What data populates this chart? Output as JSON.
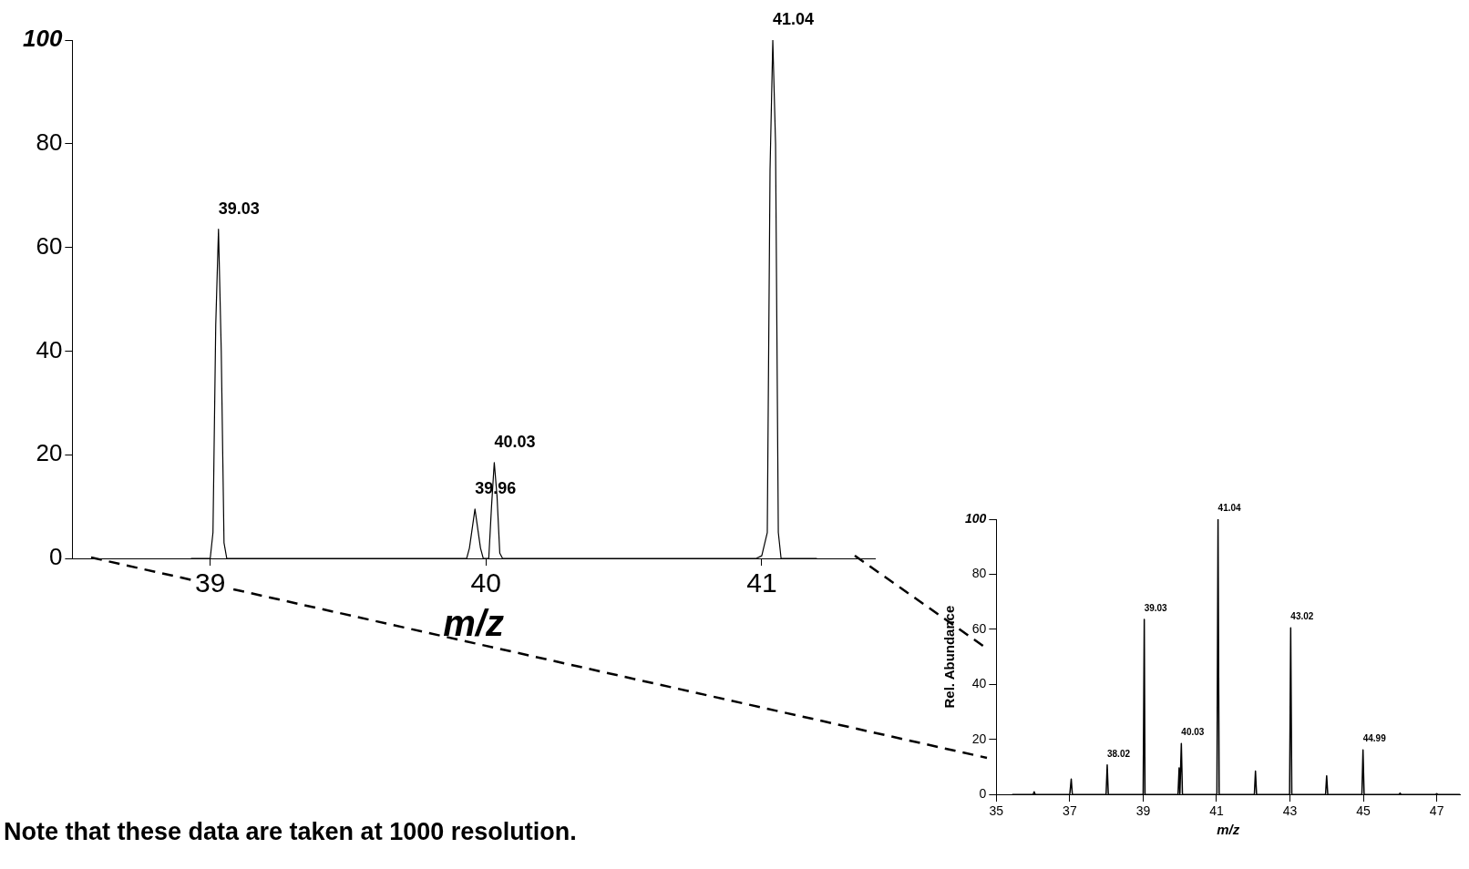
{
  "chart_data": [
    {
      "type": "line",
      "xlabel": "m/z",
      "xlim": [
        38.5,
        41.41
      ],
      "xticks": [
        39,
        40,
        41
      ],
      "ylim": [
        0,
        100
      ],
      "yticks": [
        0,
        20,
        40,
        60,
        80,
        100
      ],
      "grid": false,
      "marker": "none",
      "series": [
        {
          "color": "#000000",
          "x": [
            38.93,
            39.0,
            39.01,
            39.02,
            39.03,
            39.04,
            39.05,
            39.06,
            39.93,
            39.94,
            39.96,
            39.98,
            39.99,
            40.01,
            40.02,
            40.03,
            40.04,
            40.05,
            40.06,
            40.98,
            41.0,
            41.02,
            41.03,
            41.04,
            41.05,
            41.06,
            41.07,
            41.2
          ],
          "values": [
            0,
            0,
            5,
            45,
            63.5,
            40,
            3,
            0,
            0,
            2,
            9.5,
            2,
            0,
            0,
            10,
            18.5,
            12,
            1,
            0,
            0,
            0.5,
            5,
            75,
            100,
            80,
            5,
            0,
            0
          ]
        }
      ],
      "annotations": [
        {
          "text": "39.03",
          "x": 39.03,
          "y": 63.5
        },
        {
          "text": "39.96",
          "x": 39.96,
          "y": 9.5
        },
        {
          "text": "40.03",
          "x": 40.03,
          "y": 18.5
        },
        {
          "text": "41.04",
          "x": 41.04,
          "y": 100
        },
        "Note that these data are taken at 1000 resolution."
      ]
    },
    {
      "type": "line",
      "xlabel": "m/z",
      "ylabel": "Rel. Abundance",
      "xlim": [
        35,
        47.63
      ],
      "xticks": [
        35,
        37,
        39,
        41,
        43,
        45,
        47
      ],
      "ylim": [
        0,
        100
      ],
      "yticks": [
        0,
        20,
        40,
        60,
        80,
        100
      ],
      "grid": false,
      "marker": "none",
      "series": [
        {
          "color": "#000000",
          "x": [
            35.43,
            36.0,
            36.03,
            36.06,
            37.0,
            37.04,
            37.07,
            37.99,
            38.02,
            38.05,
            39.0,
            39.03,
            39.05,
            39.95,
            39.98,
            40.0,
            40.04,
            40.07,
            41.01,
            41.04,
            41.07,
            42.03,
            42.06,
            42.09,
            42.99,
            43.02,
            43.05,
            43.97,
            44.0,
            44.03,
            44.96,
            44.99,
            45.02,
            45.97,
            46.0,
            46.03,
            46.97,
            47.0,
            47.03,
            47.63
          ],
          "values": [
            0,
            0,
            1,
            0,
            0,
            5.6,
            0,
            0,
            10.7,
            0,
            0,
            63.6,
            0,
            0,
            9.7,
            0,
            18.5,
            0,
            0,
            100,
            0,
            0,
            8.5,
            0,
            0,
            60.5,
            0,
            0,
            6.8,
            0,
            0,
            16.2,
            0,
            0,
            0.5,
            0,
            0,
            0.3,
            0,
            0
          ]
        }
      ],
      "annotations": [
        {
          "text": "38.02",
          "x": 38.02,
          "y": 10.7
        },
        {
          "text": "39.03",
          "x": 39.03,
          "y": 63.6
        },
        {
          "text": "40.03",
          "x": 40.04,
          "y": 18.5
        },
        {
          "text": "41.04",
          "x": 41.04,
          "y": 100
        },
        {
          "text": "43.02",
          "x": 43.02,
          "y": 60.5
        },
        {
          "text": "44.99",
          "x": 44.99,
          "y": 16.2
        }
      ]
    }
  ]
}
